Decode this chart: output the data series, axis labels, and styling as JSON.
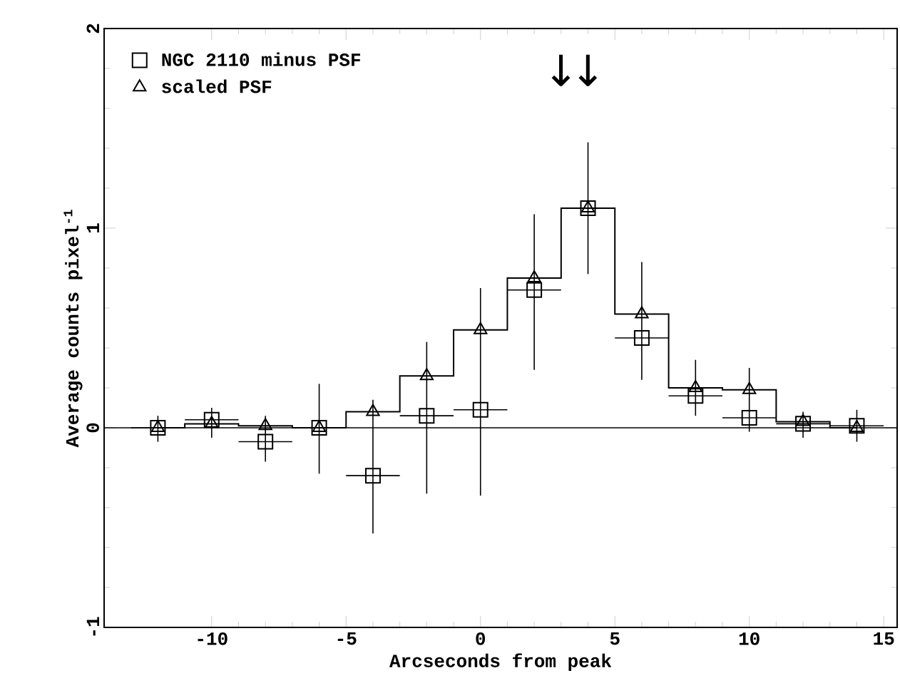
{
  "chart_data": {
    "type": "scatter",
    "xlabel": "Arcseconds from peak",
    "ylabel": "Average counts pixel$^{-1}$",
    "x": [
      -12,
      -10,
      -8,
      -6,
      -4,
      -2,
      0,
      2,
      4,
      6,
      8,
      10,
      12,
      14
    ],
    "xlim": [
      -14,
      15.5
    ],
    "xticks": [
      -10,
      -5,
      0,
      5,
      10,
      15
    ],
    "ylim": [
      -1,
      2
    ],
    "yticks": [
      -1,
      0,
      1,
      2
    ],
    "legend": "top left",
    "series": [
      {
        "name": "NGC 2110 minus PSF",
        "marker": "square",
        "color": "#000000",
        "values": [
          0,
          0.04,
          -0.07,
          0,
          -0.24,
          0.06,
          0.09,
          0.69,
          1.1,
          0.45,
          0.16,
          0.05,
          0.02,
          0.01
        ],
        "errors": [
          [
            -0.07,
            0.06
          ],
          [
            -0.05,
            0.1
          ],
          [
            -0.17,
            0.06
          ],
          [
            -0.23,
            0.22
          ],
          [
            -0.53,
            0.14
          ],
          [
            -0.33,
            0.43
          ],
          [
            -0.34,
            0.7
          ],
          [
            0.29,
            1.07
          ],
          [
            0.77,
            1.43
          ],
          [
            0.24,
            0.83
          ],
          [
            0.06,
            0.34
          ],
          [
            -0.02,
            0.3
          ],
          [
            -0.05,
            0.08
          ],
          [
            -0.07,
            0.09
          ]
        ],
        "xerrors": [
          1,
          1,
          1,
          1,
          1,
          1,
          1,
          1,
          1,
          1,
          1,
          1,
          1,
          1
        ]
      },
      {
        "name": "scaled PSF",
        "type": "step",
        "marker": "triangle",
        "color": "#000000",
        "values": [
          0,
          0.02,
          0.01,
          0,
          0.08,
          0.26,
          0.49,
          0.75,
          1.1,
          0.57,
          0.2,
          0.19,
          0.03,
          0
        ]
      }
    ],
    "ref_lines": [
      {
        "axis": "y",
        "value": 0
      }
    ],
    "annotations": [
      "↓",
      "↓"
    ]
  }
}
